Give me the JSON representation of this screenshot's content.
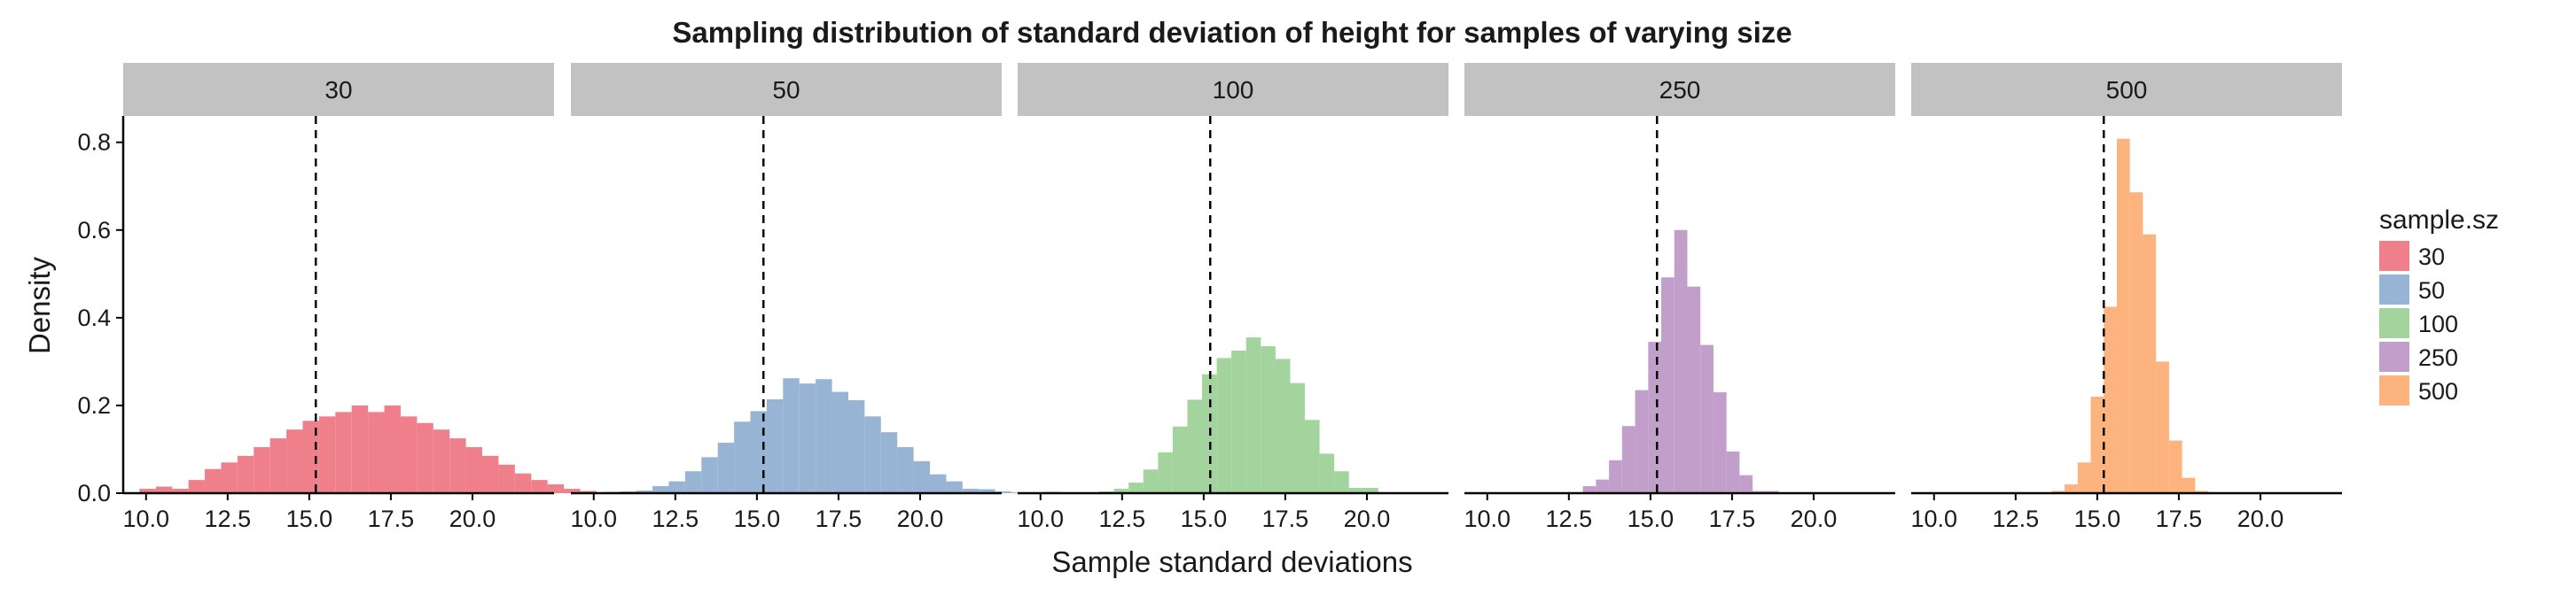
{
  "chart_data": {
    "type": "bar",
    "title": "Sampling distribution of standard deviation of height for samples of varying size",
    "xlabel": "Sample standard deviations",
    "ylabel": "Density",
    "xlim": [
      9.3,
      22.5
    ],
    "ylim": [
      0,
      0.86
    ],
    "x_ticks": [
      "10.0",
      "12.5",
      "15.0",
      "17.5",
      "20.0"
    ],
    "y_ticks": [
      "0.0",
      "0.2",
      "0.4",
      "0.6",
      "0.8"
    ],
    "reference_line": {
      "x": 15.2,
      "style": "dashed"
    },
    "grid": false,
    "legend": {
      "title": "sample.sz",
      "position": "right",
      "entries": [
        {
          "label": "30",
          "color": "#ef7f8a"
        },
        {
          "label": "50",
          "color": "#97b4d4"
        },
        {
          "label": "100",
          "color": "#a3d49e"
        },
        {
          "label": "250",
          "color": "#c29fcb"
        },
        {
          "label": "500",
          "color": "#fdb37d"
        }
      ]
    },
    "panels": [
      {
        "label": "30",
        "color": "#ef7f8a",
        "bin_start": 9.8,
        "bin_width": 0.5,
        "values": [
          0.01,
          0.015,
          0.01,
          0.03,
          0.055,
          0.07,
          0.085,
          0.105,
          0.125,
          0.145,
          0.165,
          0.175,
          0.185,
          0.2,
          0.185,
          0.2,
          0.175,
          0.16,
          0.145,
          0.125,
          0.105,
          0.085,
          0.065,
          0.045,
          0.03,
          0.02,
          0.01,
          0.005,
          0.002
        ]
      },
      {
        "label": "50",
        "color": "#97b4d4",
        "bin_start": 9.8,
        "bin_width": 0.5,
        "values": [
          0,
          0.003,
          0.004,
          0.006,
          0.016,
          0.027,
          0.05,
          0.082,
          0.115,
          0.163,
          0.187,
          0.214,
          0.262,
          0.25,
          0.26,
          0.231,
          0.212,
          0.175,
          0.139,
          0.105,
          0.073,
          0.043,
          0.027,
          0.01,
          0.009,
          0.004,
          0.002,
          0.002,
          0.003
        ]
      },
      {
        "label": "100",
        "color": "#a3d49e",
        "bin_start": 11.8,
        "bin_width": 0.45,
        "values": [
          0.004,
          0.01,
          0.024,
          0.054,
          0.093,
          0.152,
          0.213,
          0.271,
          0.308,
          0.325,
          0.355,
          0.335,
          0.306,
          0.251,
          0.167,
          0.09,
          0.05,
          0.012,
          0.012
        ]
      },
      {
        "label": "250",
        "color": "#c29fcb",
        "bin_start": 12.93,
        "bin_width": 0.4,
        "values": [
          0.016,
          0.031,
          0.075,
          0.153,
          0.235,
          0.345,
          0.492,
          0.6,
          0.471,
          0.338,
          0.23,
          0.095,
          0.041,
          0.005,
          0.005
        ]
      },
      {
        "label": "500",
        "color": "#fdb37d",
        "bin_start": 13.6,
        "bin_width": 0.4,
        "values": [
          0.005,
          0.02,
          0.07,
          0.22,
          0.425,
          0.808,
          0.686,
          0.59,
          0.3,
          0.12,
          0.035,
          0.005,
          0.002
        ]
      }
    ]
  }
}
